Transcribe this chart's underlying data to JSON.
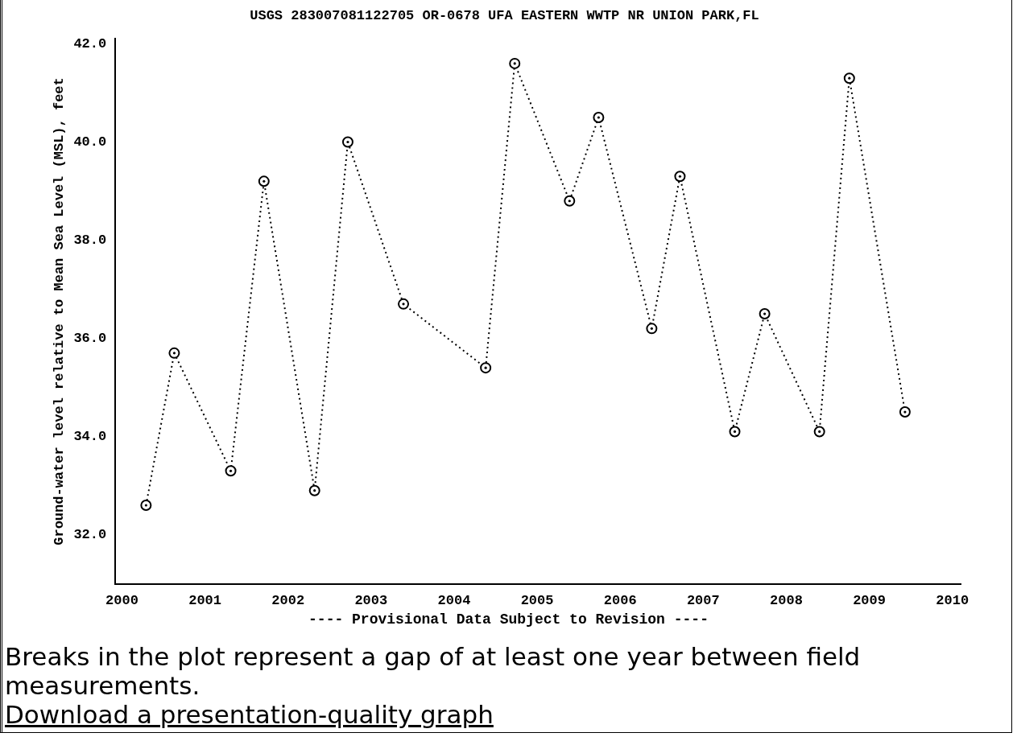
{
  "chart_data": {
    "type": "line",
    "title": "USGS 283007081122705 OR-0678 UFA EASTERN WWTP NR UNION PARK,FL",
    "ylabel": "Ground-water level relative to Mean Sea Level (MSL), feet",
    "x": [
      2000.29,
      2000.63,
      2001.31,
      2001.71,
      2002.32,
      2002.72,
      2003.39,
      2004.38,
      2004.73,
      2005.39,
      2005.74,
      2006.38,
      2006.72,
      2007.38,
      2007.74,
      2008.4,
      2008.76,
      2009.43
    ],
    "series": [
      {
        "color": "#000000",
        "values": [
          32.6,
          35.7,
          33.3,
          39.2,
          32.9,
          40.0,
          36.7,
          35.4,
          41.6,
          38.8,
          40.5,
          36.2,
          39.3,
          34.1,
          36.5,
          34.1,
          41.3,
          34.5
        ]
      }
    ],
    "xlim": [
      1999.92,
      2010.1
    ],
    "xticks": [
      2000,
      2001,
      2002,
      2003,
      2004,
      2005,
      2006,
      2007,
      2008,
      2009,
      2010
    ],
    "ylim": [
      31,
      42.1
    ],
    "yticks": [
      {
        "value": 32,
        "label": "32.0"
      },
      {
        "value": 34,
        "label": "34.0"
      },
      {
        "value": 36,
        "label": "36.0"
      },
      {
        "value": 38,
        "label": "38.0"
      },
      {
        "value": 40,
        "label": "40.0"
      },
      {
        "value": 42,
        "label": "42.0"
      }
    ],
    "marker": "circle",
    "line_style": "dotted",
    "grid": false,
    "legend": false,
    "annotations": [
      "---- Provisional Data Subject to Revision ----",
      "Breaks in the plot represent a gap of at least one year between field measurements.",
      "Download a presentation-quality graph"
    ]
  }
}
